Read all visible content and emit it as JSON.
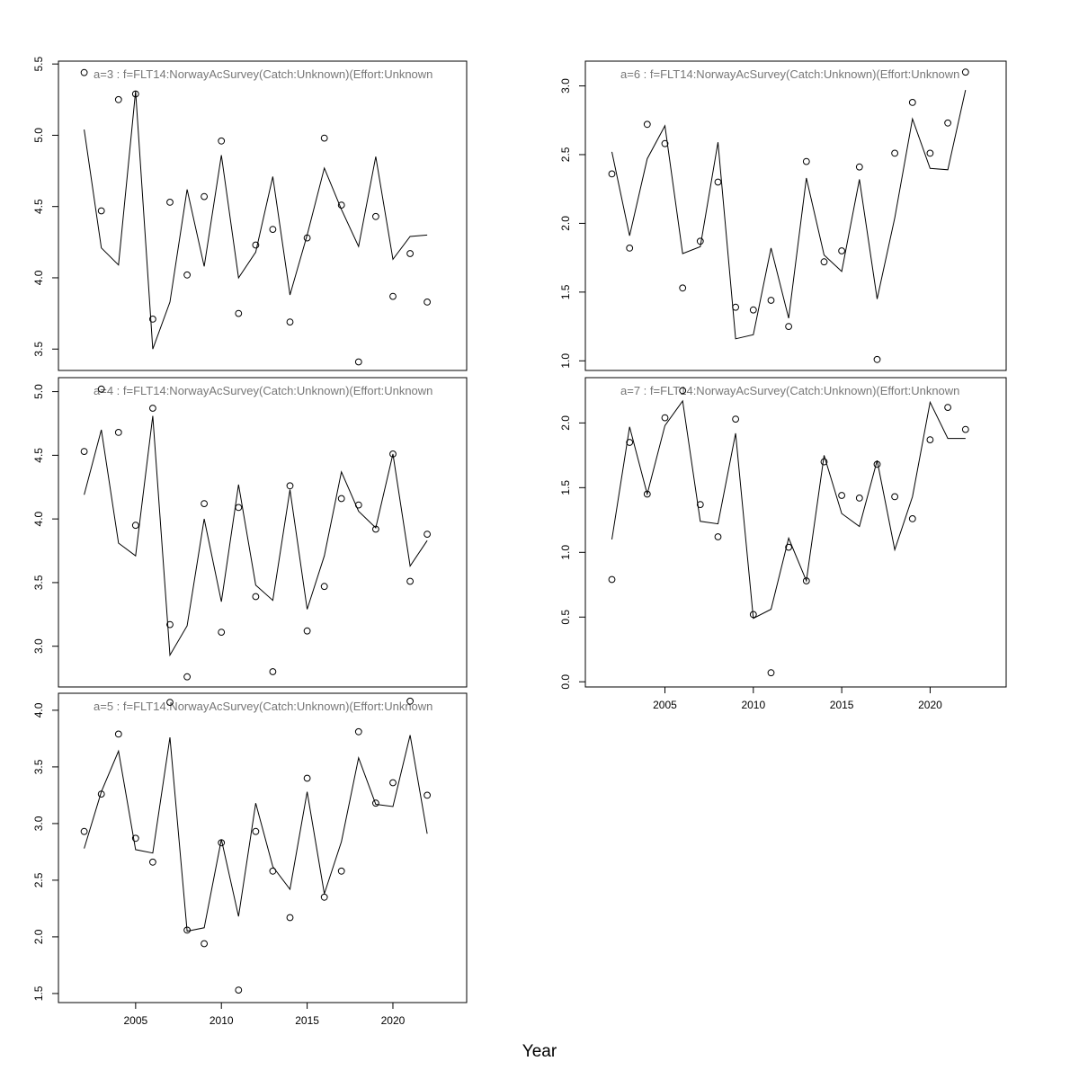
{
  "xlabel": "Year",
  "chart_data": [
    {
      "type": "line",
      "title": "a=3  :  f=FLT14:NorwayAcSurvey(Catch:Unknown)(Effort:Unknown",
      "x": [
        2002,
        2003,
        2004,
        2005,
        2006,
        2007,
        2008,
        2009,
        2010,
        2011,
        2012,
        2013,
        2014,
        2015,
        2016,
        2017,
        2018,
        2019,
        2020,
        2021,
        2022
      ],
      "xlim": [
        2000.5,
        2024.3
      ],
      "ylim": [
        3.35,
        5.52
      ],
      "yticks": [
        "3.5",
        "4.0",
        "4.5",
        "5.0",
        "5.5"
      ],
      "xticks": [],
      "series": [
        {
          "kind": "points",
          "values": [
            5.44,
            4.47,
            5.25,
            5.29,
            3.71,
            4.53,
            4.02,
            4.57,
            4.96,
            3.75,
            4.23,
            4.34,
            3.69,
            4.28,
            4.98,
            4.51,
            3.41,
            4.43,
            3.87,
            4.17,
            3.83
          ]
        },
        {
          "kind": "line",
          "values": [
            5.04,
            4.21,
            4.09,
            5.31,
            3.5,
            3.83,
            4.62,
            4.08,
            4.86,
            4.0,
            4.18,
            4.71,
            3.88,
            4.3,
            4.77,
            4.48,
            4.22,
            4.85,
            4.13,
            4.29,
            4.3
          ]
        }
      ]
    },
    {
      "type": "line",
      "title": "a=4  :  f=FLT14:NorwayAcSurvey(Catch:Unknown)(Effort:Unknown",
      "x": [
        2002,
        2003,
        2004,
        2005,
        2006,
        2007,
        2008,
        2009,
        2010,
        2011,
        2012,
        2013,
        2014,
        2015,
        2016,
        2017,
        2018,
        2019,
        2020,
        2021,
        2022
      ],
      "xlim": [
        2000.5,
        2024.3
      ],
      "ylim": [
        2.68,
        5.11
      ],
      "yticks": [
        "3.0",
        "3.5",
        "4.0",
        "4.5",
        "5.0"
      ],
      "xticks": [],
      "series": [
        {
          "kind": "points",
          "values": [
            4.53,
            5.02,
            4.68,
            3.95,
            4.87,
            3.17,
            2.76,
            4.12,
            3.11,
            4.09,
            3.39,
            2.8,
            4.26,
            3.12,
            3.47,
            4.16,
            4.11,
            3.92,
            4.51,
            3.51,
            3.88
          ]
        },
        {
          "kind": "line",
          "values": [
            4.19,
            4.7,
            3.81,
            3.71,
            4.81,
            2.93,
            3.16,
            4.0,
            3.35,
            4.27,
            3.48,
            3.36,
            4.23,
            3.29,
            3.71,
            4.37,
            4.06,
            3.93,
            4.51,
            3.63,
            3.83
          ]
        }
      ]
    },
    {
      "type": "line",
      "title": "a=5  :  f=FLT14:NorwayAcSurvey(Catch:Unknown)(Effort:Unknown",
      "x": [
        2002,
        2003,
        2004,
        2005,
        2006,
        2007,
        2008,
        2009,
        2010,
        2011,
        2012,
        2013,
        2014,
        2015,
        2016,
        2017,
        2018,
        2019,
        2020,
        2021,
        2022
      ],
      "xlim": [
        2000.5,
        2024.3
      ],
      "ylim": [
        1.42,
        4.15
      ],
      "yticks": [
        "1.5",
        "2.0",
        "2.5",
        "3.0",
        "3.5",
        "4.0"
      ],
      "xticks": [
        "2005",
        "2010",
        "2015",
        "2020"
      ],
      "series": [
        {
          "kind": "points",
          "values": [
            2.93,
            3.26,
            3.79,
            2.87,
            2.66,
            4.07,
            2.06,
            1.94,
            2.83,
            1.53,
            2.93,
            2.58,
            2.17,
            3.4,
            2.35,
            2.58,
            3.81,
            3.18,
            3.36,
            4.08,
            3.25
          ]
        },
        {
          "kind": "line",
          "values": [
            2.78,
            3.28,
            3.64,
            2.77,
            2.74,
            3.76,
            2.05,
            2.08,
            2.86,
            2.18,
            3.18,
            2.62,
            2.42,
            3.28,
            2.38,
            2.84,
            3.58,
            3.17,
            3.15,
            3.78,
            2.91
          ]
        }
      ]
    },
    {
      "type": "line",
      "title": "a=6  :  f=FLT14:NorwayAcSurvey(Catch:Unknown)(Effort:Unknown",
      "x": [
        2002,
        2003,
        2004,
        2005,
        2006,
        2007,
        2008,
        2009,
        2010,
        2011,
        2012,
        2013,
        2014,
        2015,
        2016,
        2017,
        2018,
        2019,
        2020,
        2021,
        2022
      ],
      "xlim": [
        2000.5,
        2024.3
      ],
      "ylim": [
        0.93,
        3.18
      ],
      "yticks": [
        "1.0",
        "1.5",
        "2.0",
        "2.5",
        "3.0"
      ],
      "xticks": [],
      "series": [
        {
          "kind": "points",
          "values": [
            2.36,
            1.82,
            2.72,
            2.58,
            1.53,
            1.87,
            2.3,
            1.39,
            1.37,
            1.44,
            1.25,
            2.45,
            1.72,
            1.8,
            2.41,
            1.01,
            2.51,
            2.88,
            2.51,
            2.73,
            3.1
          ]
        },
        {
          "kind": "line",
          "values": [
            2.52,
            1.91,
            2.47,
            2.71,
            1.78,
            1.83,
            2.59,
            1.16,
            1.19,
            1.82,
            1.31,
            2.33,
            1.77,
            1.65,
            2.32,
            1.45,
            2.04,
            2.76,
            2.4,
            2.39,
            2.97
          ]
        }
      ]
    },
    {
      "type": "line",
      "title": "a=7  :  f=FLT14:NorwayAcSurvey(Catch:Unknown)(Effort:Unknown",
      "x": [
        2002,
        2003,
        2004,
        2005,
        2006,
        2007,
        2008,
        2009,
        2010,
        2011,
        2012,
        2013,
        2014,
        2015,
        2016,
        2017,
        2018,
        2019,
        2020,
        2021,
        2022
      ],
      "xlim": [
        2000.5,
        2024.3
      ],
      "ylim": [
        -0.04,
        2.35
      ],
      "yticks": [
        "0.0",
        "0.5",
        "1.0",
        "1.5",
        "2.0"
      ],
      "xticks": [
        "2005",
        "2010",
        "2015",
        "2020"
      ],
      "series": [
        {
          "kind": "points",
          "values": [
            0.79,
            1.85,
            1.45,
            2.04,
            2.25,
            1.37,
            1.12,
            2.03,
            0.52,
            0.07,
            1.04,
            0.78,
            1.7,
            1.44,
            1.42,
            1.68,
            1.43,
            1.26,
            1.87,
            2.12,
            1.95
          ]
        },
        {
          "kind": "line",
          "values": [
            1.1,
            1.97,
            1.45,
            1.98,
            2.17,
            1.24,
            1.22,
            1.92,
            0.49,
            0.56,
            1.11,
            0.78,
            1.75,
            1.3,
            1.2,
            1.71,
            1.02,
            1.43,
            2.16,
            1.88,
            1.88
          ]
        }
      ]
    }
  ]
}
